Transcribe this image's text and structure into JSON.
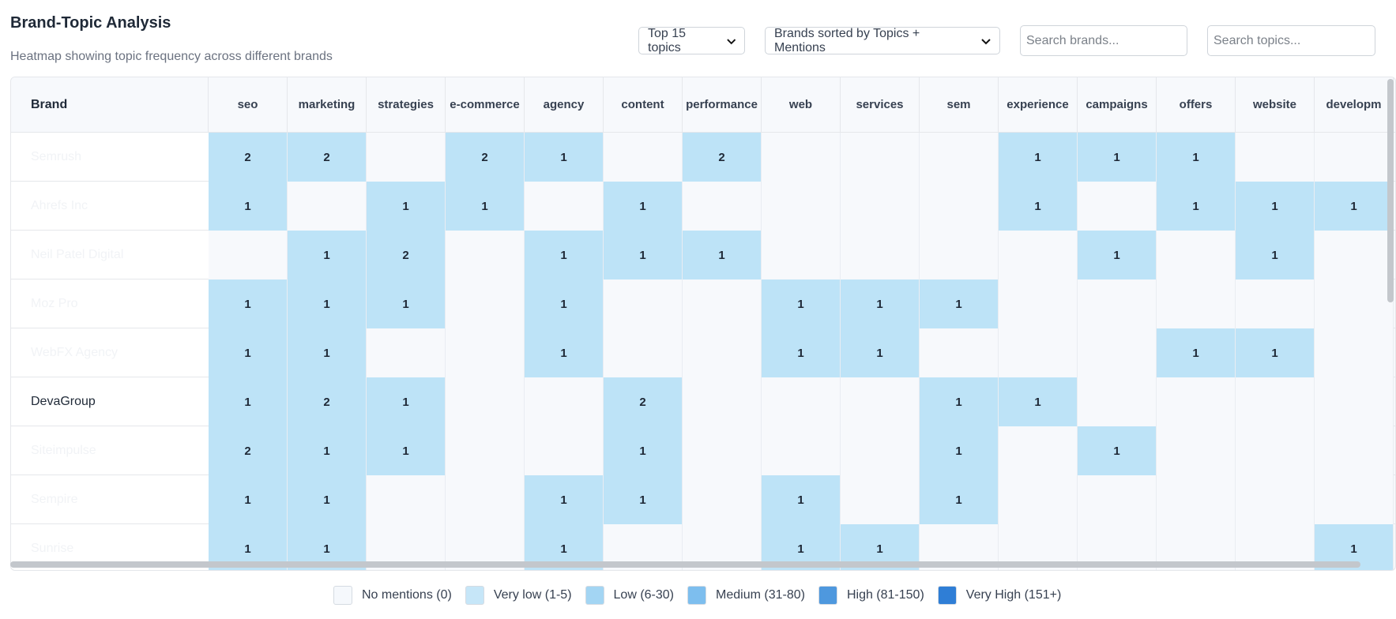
{
  "header": {
    "title": "Brand-Topic Analysis",
    "subtitle": "Heatmap showing topic frequency across different brands"
  },
  "controls": {
    "topics_select": "Top 15 topics",
    "sort_select": "Brands sorted by Topics + Mentions",
    "search_brands_placeholder": "Search brands...",
    "search_topics_placeholder": "Search topics..."
  },
  "table": {
    "brand_header": "Brand",
    "topics": [
      "seo",
      "marketing",
      "strategies",
      "e-commerce",
      "agency",
      "content",
      "performance",
      "web",
      "services",
      "sem",
      "experience",
      "campaigns",
      "offers",
      "website",
      "developm"
    ],
    "rows": [
      {
        "brand": "Semrush",
        "values": [
          2,
          2,
          0,
          2,
          1,
          0,
          2,
          0,
          0,
          0,
          1,
          1,
          1,
          0,
          0
        ]
      },
      {
        "brand": "Ahrefs Inc",
        "values": [
          1,
          0,
          1,
          1,
          0,
          1,
          0,
          0,
          0,
          0,
          1,
          0,
          1,
          1,
          1
        ]
      },
      {
        "brand": "Neil Patel Digital",
        "values": [
          0,
          1,
          2,
          0,
          1,
          1,
          1,
          0,
          0,
          0,
          0,
          1,
          0,
          1,
          0
        ]
      },
      {
        "brand": "Moz Pro",
        "values": [
          1,
          1,
          1,
          0,
          1,
          0,
          0,
          1,
          1,
          1,
          0,
          0,
          0,
          0,
          0
        ]
      },
      {
        "brand": "WebFX Agency",
        "values": [
          1,
          1,
          0,
          0,
          1,
          0,
          0,
          1,
          1,
          0,
          0,
          0,
          1,
          1,
          0
        ]
      },
      {
        "brand": "DevaGroup",
        "values": [
          1,
          2,
          1,
          0,
          0,
          2,
          0,
          0,
          0,
          1,
          1,
          0,
          0,
          0,
          0
        ]
      },
      {
        "brand": "Siteimpulse",
        "values": [
          2,
          1,
          1,
          0,
          0,
          1,
          0,
          0,
          0,
          1,
          0,
          1,
          0,
          0,
          0
        ]
      },
      {
        "brand": "Sempire",
        "values": [
          1,
          1,
          0,
          0,
          1,
          1,
          0,
          1,
          0,
          1,
          0,
          0,
          0,
          0,
          0
        ]
      },
      {
        "brand": "Sunrise",
        "values": [
          1,
          1,
          0,
          0,
          1,
          0,
          0,
          1,
          1,
          0,
          0,
          0,
          0,
          0,
          1
        ]
      }
    ]
  },
  "legend": [
    {
      "label": "No mentions (0)",
      "color": "#f5f8fc"
    },
    {
      "label": "Very low (1-5)",
      "color": "#c6e6f8"
    },
    {
      "label": "Low (6-30)",
      "color": "#a3d5f3"
    },
    {
      "label": "Medium (31-80)",
      "color": "#7dbeee"
    },
    {
      "label": "High (81-150)",
      "color": "#4e98de"
    },
    {
      "label": "Very High (151+)",
      "color": "#2f7ed6"
    }
  ]
}
